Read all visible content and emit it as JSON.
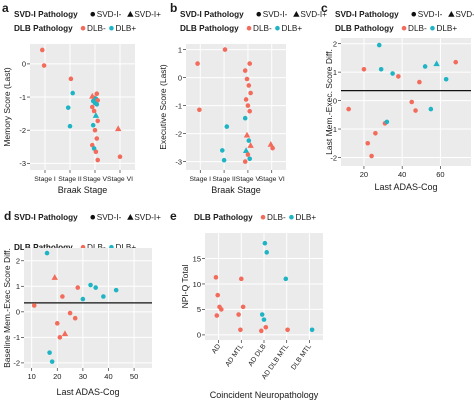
{
  "colors": {
    "dlb_neg": "#f26b5b",
    "dlb_pos": "#1fb4c4",
    "panel_bg": "#ebebeb",
    "grid": "#ffffff",
    "hline": "#111111"
  },
  "chart_data": [
    {
      "id": "a",
      "panel_letter": "a",
      "type": "scatter",
      "legend": {
        "rows": [
          {
            "title": "SVD-I Pathology",
            "entries": [
              {
                "symbol": "circle",
                "label": "SVD-I-"
              },
              {
                "symbol": "triangle",
                "label": "SVD-I+"
              }
            ]
          },
          {
            "title": "DLB Pathology",
            "entries": [
              {
                "symbol": "circle",
                "color": "#f26b5b",
                "label": "DLB-"
              },
              {
                "symbol": "circle",
                "color": "#1fb4c4",
                "label": "DLB+"
              }
            ]
          }
        ]
      },
      "x_categorical": true,
      "x_categories": [
        "Stage I",
        "Stage II",
        "Stage V",
        "Stage VI"
      ],
      "xlabel": "Braak  Stage",
      "ylabel": "Memory Score (Last)",
      "ylim": [
        -3.2,
        0.6
      ],
      "yticks": [
        0,
        -1,
        -2,
        -3
      ],
      "points": [
        {
          "x": 0,
          "y": 0.42,
          "dlb": false,
          "svd": false
        },
        {
          "x": 0,
          "y": -0.05,
          "dlb": false,
          "svd": false
        },
        {
          "x": 1,
          "y": -0.45,
          "dlb": false,
          "svd": false
        },
        {
          "x": 1,
          "y": -0.88,
          "dlb": true,
          "svd": false
        },
        {
          "x": 1,
          "y": -1.32,
          "dlb": true,
          "svd": false
        },
        {
          "x": 1,
          "y": -1.88,
          "dlb": true,
          "svd": false
        },
        {
          "x": 2,
          "y": -0.9,
          "dlb": false,
          "svd": false
        },
        {
          "x": 2,
          "y": -0.97,
          "dlb": false,
          "svd": true
        },
        {
          "x": 2,
          "y": -1.02,
          "dlb": false,
          "svd": false
        },
        {
          "x": 2,
          "y": -1.05,
          "dlb": true,
          "svd": false
        },
        {
          "x": 2,
          "y": -1.1,
          "dlb": false,
          "svd": false
        },
        {
          "x": 2,
          "y": -1.12,
          "dlb": true,
          "svd": false
        },
        {
          "x": 2,
          "y": -1.18,
          "dlb": true,
          "svd": false
        },
        {
          "x": 2,
          "y": -1.22,
          "dlb": true,
          "svd": false
        },
        {
          "x": 2,
          "y": -1.3,
          "dlb": false,
          "svd": false
        },
        {
          "x": 2,
          "y": -1.42,
          "dlb": false,
          "svd": false
        },
        {
          "x": 2,
          "y": -1.55,
          "dlb": true,
          "svd": true
        },
        {
          "x": 2,
          "y": -1.72,
          "dlb": false,
          "svd": false
        },
        {
          "x": 2,
          "y": -1.85,
          "dlb": true,
          "svd": false
        },
        {
          "x": 2,
          "y": -2.0,
          "dlb": false,
          "svd": false
        },
        {
          "x": 2,
          "y": -2.25,
          "dlb": false,
          "svd": false
        },
        {
          "x": 2,
          "y": -2.45,
          "dlb": false,
          "svd": false
        },
        {
          "x": 2,
          "y": -2.55,
          "dlb": true,
          "svd": false
        },
        {
          "x": 2,
          "y": -2.65,
          "dlb": false,
          "svd": false
        },
        {
          "x": 2,
          "y": -2.9,
          "dlb": false,
          "svd": false
        },
        {
          "x": 3,
          "y": -1.95,
          "dlb": false,
          "svd": true
        },
        {
          "x": 3,
          "y": -2.8,
          "dlb": false,
          "svd": false
        }
      ]
    },
    {
      "id": "b",
      "panel_letter": "b",
      "type": "scatter",
      "legend": {
        "rows": [
          {
            "title": "SVD-I Pathology",
            "entries": [
              {
                "symbol": "circle",
                "label": "SVD-I-"
              },
              {
                "symbol": "triangle",
                "label": "SVD-I+"
              }
            ]
          },
          {
            "title": "DLB Pathology",
            "entries": [
              {
                "symbol": "circle",
                "color": "#f26b5b",
                "label": "DLB-"
              },
              {
                "symbol": "circle",
                "color": "#1fb4c4",
                "label": "DLB+"
              }
            ]
          }
        ]
      },
      "x_categorical": true,
      "x_categories": [
        "Stage I",
        "Stage II",
        "Stage V",
        "Stage VI"
      ],
      "xlabel": "Braak  Stage",
      "ylabel": "Executive Score (Last)",
      "ylim": [
        -3.3,
        1.2
      ],
      "yticks": [
        1,
        0,
        -1,
        -2,
        -3
      ],
      "points": [
        {
          "x": 0,
          "y": 0.5,
          "dlb": false,
          "svd": false
        },
        {
          "x": 0,
          "y": -1.15,
          "dlb": false,
          "svd": false
        },
        {
          "x": 1,
          "y": 1.0,
          "dlb": false,
          "svd": false
        },
        {
          "x": 1,
          "y": -1.75,
          "dlb": true,
          "svd": false
        },
        {
          "x": 1,
          "y": -2.6,
          "dlb": true,
          "svd": false
        },
        {
          "x": 1,
          "y": -2.95,
          "dlb": true,
          "svd": false
        },
        {
          "x": 2,
          "y": 0.5,
          "dlb": false,
          "svd": false
        },
        {
          "x": 2,
          "y": 0.25,
          "dlb": false,
          "svd": false
        },
        {
          "x": 2,
          "y": -0.05,
          "dlb": false,
          "svd": false
        },
        {
          "x": 2,
          "y": -0.28,
          "dlb": false,
          "svd": false
        },
        {
          "x": 2,
          "y": -0.55,
          "dlb": false,
          "svd": false
        },
        {
          "x": 2,
          "y": -0.78,
          "dlb": false,
          "svd": false
        },
        {
          "x": 2,
          "y": -1.0,
          "dlb": false,
          "svd": false
        },
        {
          "x": 2,
          "y": -1.2,
          "dlb": false,
          "svd": false
        },
        {
          "x": 2,
          "y": -1.45,
          "dlb": true,
          "svd": false
        },
        {
          "x": 2,
          "y": -2.05,
          "dlb": false,
          "svd": true
        },
        {
          "x": 2,
          "y": -2.25,
          "dlb": true,
          "svd": false
        },
        {
          "x": 2,
          "y": -2.42,
          "dlb": false,
          "svd": true
        },
        {
          "x": 2,
          "y": -2.6,
          "dlb": true,
          "svd": true
        },
        {
          "x": 2,
          "y": -2.75,
          "dlb": false,
          "svd": false
        },
        {
          "x": 2,
          "y": -2.9,
          "dlb": true,
          "svd": false
        },
        {
          "x": 2,
          "y": -3.0,
          "dlb": false,
          "svd": false
        },
        {
          "x": 3,
          "y": -2.38,
          "dlb": false,
          "svd": true
        },
        {
          "x": 3,
          "y": -2.52,
          "dlb": false,
          "svd": false
        }
      ]
    },
    {
      "id": "c",
      "panel_letter": "c",
      "type": "scatter",
      "legend": {
        "rows": [
          {
            "title": "SVD-I Pathology",
            "entries": [
              {
                "symbol": "circle",
                "label": "SVD-I-"
              },
              {
                "symbol": "triangle",
                "label": "SVD-I+"
              }
            ]
          },
          {
            "title": "DLB Pathology",
            "entries": [
              {
                "symbol": "circle",
                "color": "#f26b5b",
                "label": "DLB-"
              },
              {
                "symbol": "circle",
                "color": "#1fb4c4",
                "label": "DLB+"
              }
            ]
          }
        ]
      },
      "x_categorical": false,
      "xlabel": "Last ADAS-Cog",
      "ylabel": "Last Mem.-Exec. Score Diff.",
      "xlim": [
        8,
        76
      ],
      "xticks": [
        20,
        40,
        60
      ],
      "ylim": [
        -2.3,
        2.2
      ],
      "yticks": [
        2,
        1,
        0,
        -1,
        -2
      ],
      "hline": 0.35,
      "points": [
        {
          "x": 12,
          "y": -0.3,
          "dlb": false,
          "svd": false
        },
        {
          "x": 20,
          "y": 1.1,
          "dlb": false,
          "svd": false
        },
        {
          "x": 22,
          "y": -1.5,
          "dlb": false,
          "svd": false
        },
        {
          "x": 24,
          "y": -1.95,
          "dlb": false,
          "svd": false
        },
        {
          "x": 26,
          "y": -1.15,
          "dlb": false,
          "svd": false
        },
        {
          "x": 28,
          "y": 1.95,
          "dlb": true,
          "svd": false
        },
        {
          "x": 29,
          "y": 1.1,
          "dlb": true,
          "svd": false
        },
        {
          "x": 31,
          "y": -0.8,
          "dlb": false,
          "svd": false
        },
        {
          "x": 32,
          "y": -0.75,
          "dlb": true,
          "svd": false
        },
        {
          "x": 35,
          "y": 0.95,
          "dlb": true,
          "svd": false
        },
        {
          "x": 38,
          "y": 0.85,
          "dlb": false,
          "svd": false
        },
        {
          "x": 45,
          "y": -0.05,
          "dlb": false,
          "svd": false
        },
        {
          "x": 47,
          "y": -0.35,
          "dlb": false,
          "svd": false
        },
        {
          "x": 49,
          "y": 0.65,
          "dlb": false,
          "svd": false
        },
        {
          "x": 52,
          "y": 1.2,
          "dlb": true,
          "svd": false
        },
        {
          "x": 55,
          "y": -0.3,
          "dlb": true,
          "svd": false
        },
        {
          "x": 58,
          "y": 1.3,
          "dlb": true,
          "svd": true
        },
        {
          "x": 63,
          "y": 0.75,
          "dlb": true,
          "svd": false
        },
        {
          "x": 68,
          "y": 1.35,
          "dlb": false,
          "svd": false
        }
      ]
    },
    {
      "id": "d",
      "panel_letter": "d",
      "type": "scatter",
      "legend": {
        "rows": [
          {
            "title": "SVD-I Pathology",
            "entries": [
              {
                "symbol": "circle",
                "label": "SVD-I-"
              },
              {
                "symbol": "triangle",
                "label": "SVD-I+"
              }
            ]
          },
          {
            "title": "DLB Pathology",
            "entries": [
              {
                "symbol": "circle",
                "color": "#f26b5b",
                "label": "DLB-"
              },
              {
                "symbol": "circle",
                "color": "#1fb4c4",
                "label": "DLB+"
              }
            ]
          }
        ]
      },
      "x_categorical": false,
      "xlabel": "Last ADAS-Cog",
      "ylabel": "Baseline Mem.-Exec Score Diff.",
      "xlim": [
        7,
        57
      ],
      "xticks": [
        10,
        20,
        30,
        40,
        50
      ],
      "ylim": [
        -2.2,
        2.5
      ],
      "yticks": [
        2,
        1,
        0,
        -1,
        -2
      ],
      "hline": 0.35,
      "points": [
        {
          "x": 11,
          "y": 0.25,
          "dlb": false,
          "svd": false
        },
        {
          "x": 16,
          "y": 2.3,
          "dlb": true,
          "svd": false
        },
        {
          "x": 17,
          "y": -1.6,
          "dlb": true,
          "svd": false
        },
        {
          "x": 18,
          "y": -1.95,
          "dlb": true,
          "svd": false
        },
        {
          "x": 19,
          "y": 1.35,
          "dlb": false,
          "svd": true
        },
        {
          "x": 20,
          "y": -0.45,
          "dlb": false,
          "svd": false
        },
        {
          "x": 21,
          "y": -1.0,
          "dlb": false,
          "svd": false
        },
        {
          "x": 22,
          "y": 0.6,
          "dlb": false,
          "svd": false
        },
        {
          "x": 23,
          "y": -0.85,
          "dlb": false,
          "svd": true
        },
        {
          "x": 25,
          "y": -0.05,
          "dlb": false,
          "svd": false
        },
        {
          "x": 27,
          "y": -0.25,
          "dlb": false,
          "svd": false
        },
        {
          "x": 28,
          "y": 0.95,
          "dlb": false,
          "svd": false
        },
        {
          "x": 30,
          "y": 0.5,
          "dlb": true,
          "svd": false
        },
        {
          "x": 33,
          "y": 1.05,
          "dlb": true,
          "svd": false
        },
        {
          "x": 35,
          "y": 0.95,
          "dlb": true,
          "svd": false
        },
        {
          "x": 38,
          "y": 0.6,
          "dlb": true,
          "svd": false
        },
        {
          "x": 43,
          "y": 0.85,
          "dlb": true,
          "svd": false
        }
      ]
    },
    {
      "id": "e",
      "panel_letter": "e",
      "type": "scatter",
      "legend": {
        "rows": [
          {
            "title": "DLB Pathology",
            "entries": [
              {
                "symbol": "circle",
                "color": "#f26b5b",
                "label": "DLB-"
              },
              {
                "symbol": "circle",
                "color": "#1fb4c4",
                "label": "DLB+"
              }
            ]
          }
        ]
      },
      "x_categorical": true,
      "x_categories": [
        "AD",
        "AD MTL",
        "AD DLB",
        "AD DLB MTL",
        "DLB MTL"
      ],
      "xlabel": "Coincident Neuropathology",
      "ylabel": "NPI-Q Total",
      "ylim": [
        -1,
        20
      ],
      "yticks": [
        0,
        5,
        10,
        15
      ],
      "points": [
        {
          "x": 0,
          "y": 11.3,
          "dlb": false,
          "svd": false
        },
        {
          "x": 0,
          "y": 7.8,
          "dlb": false,
          "svd": false
        },
        {
          "x": 0,
          "y": 5.5,
          "dlb": false,
          "svd": false
        },
        {
          "x": 0,
          "y": 5.0,
          "dlb": false,
          "svd": false
        },
        {
          "x": 0,
          "y": 3.8,
          "dlb": false,
          "svd": false
        },
        {
          "x": 1,
          "y": 11.0,
          "dlb": false,
          "svd": false
        },
        {
          "x": 1,
          "y": 5.5,
          "dlb": false,
          "svd": false
        },
        {
          "x": 1,
          "y": 4.0,
          "dlb": false,
          "svd": false
        },
        {
          "x": 1,
          "y": 1.0,
          "dlb": false,
          "svd": false
        },
        {
          "x": 2,
          "y": 18.0,
          "dlb": true,
          "svd": false
        },
        {
          "x": 2,
          "y": 16.2,
          "dlb": true,
          "svd": false
        },
        {
          "x": 2,
          "y": 4.0,
          "dlb": true,
          "svd": false
        },
        {
          "x": 2,
          "y": 3.0,
          "dlb": true,
          "svd": false
        },
        {
          "x": 2,
          "y": 1.5,
          "dlb": false,
          "svd": false
        },
        {
          "x": 2,
          "y": 0.8,
          "dlb": false,
          "svd": false
        },
        {
          "x": 3,
          "y": 11.0,
          "dlb": true,
          "svd": false
        },
        {
          "x": 3,
          "y": 1.0,
          "dlb": false,
          "svd": false
        },
        {
          "x": 4,
          "y": 1.0,
          "dlb": true,
          "svd": false
        }
      ]
    }
  ]
}
